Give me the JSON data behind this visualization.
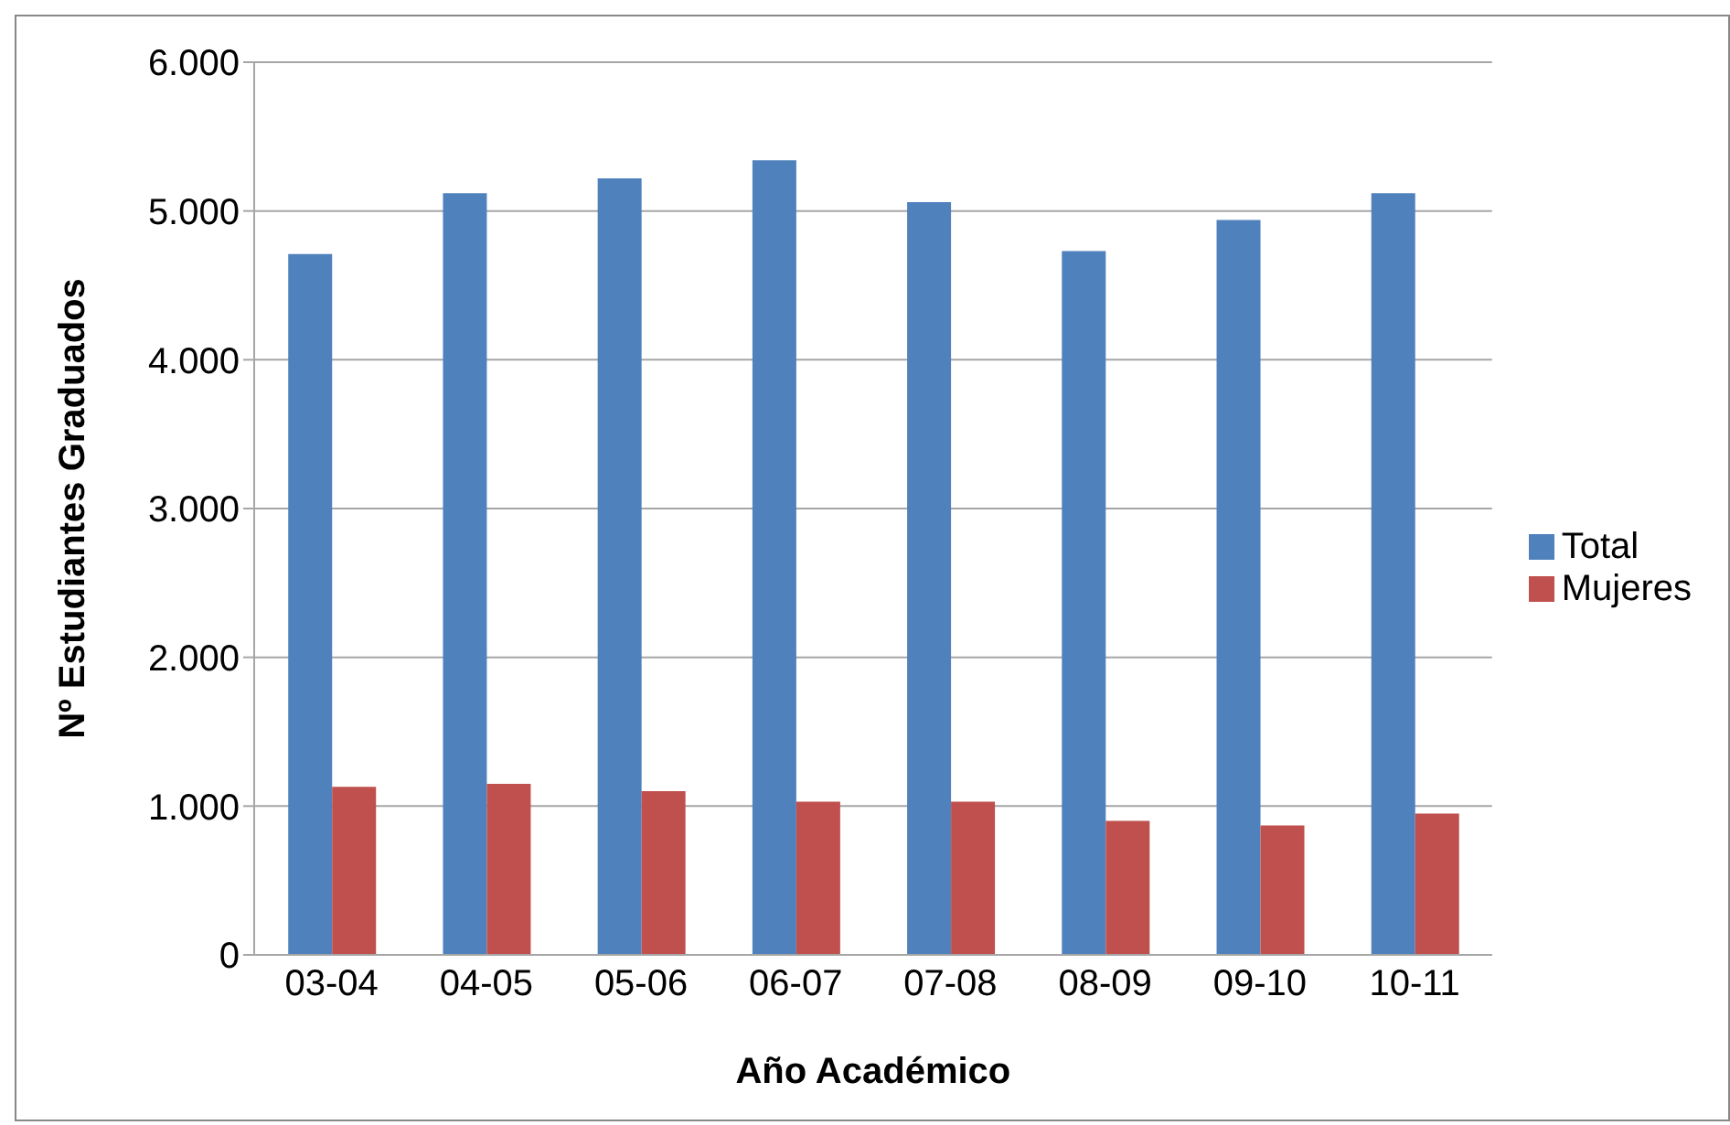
{
  "chart_data": {
    "type": "bar",
    "xlabel": "Año Académico",
    "ylabel": "Nº Estudiantes Graduados",
    "categories": [
      "03-04",
      "04-05",
      "05-06",
      "06-07",
      "07-08",
      "08-09",
      "09-10",
      "10-11"
    ],
    "series": [
      {
        "name": "Total",
        "color": "#4f81bd",
        "values": [
          4710,
          5120,
          5220,
          5340,
          5060,
          4730,
          4940,
          5120
        ]
      },
      {
        "name": "Mujeres",
        "color": "#c0504d",
        "values": [
          1130,
          1150,
          1100,
          1030,
          1030,
          900,
          870,
          950
        ]
      }
    ],
    "ylim": [
      0,
      6000
    ],
    "yticks": [
      {
        "value": 0,
        "label": "0"
      },
      {
        "value": 1000,
        "label": "1.000"
      },
      {
        "value": 2000,
        "label": "2.000"
      },
      {
        "value": 3000,
        "label": "3.000"
      },
      {
        "value": 4000,
        "label": "4.000"
      },
      {
        "value": 5000,
        "label": "5.000"
      },
      {
        "value": 6000,
        "label": "6.000"
      }
    ],
    "grid": "y",
    "legend": "right"
  }
}
